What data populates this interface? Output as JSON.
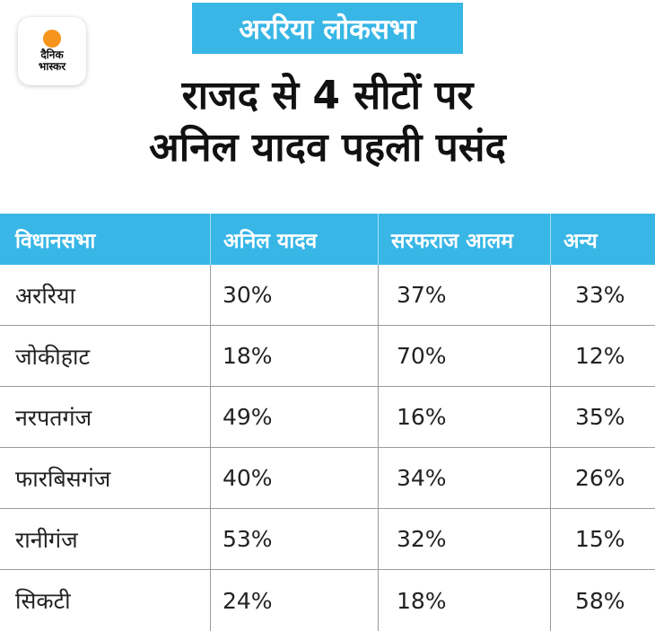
{
  "logo": {
    "line1": "दैनिक",
    "line2": "भास्कर"
  },
  "tag": "अररिया लोकसभा",
  "headline": {
    "line1": "राजद से 4 सीटों पर",
    "line2": "अनिल यादव पहली पसंद"
  },
  "colors": {
    "accent": "#38b6e6",
    "logo_sun": "#f7941d",
    "text": "#222222",
    "grid": "#9a9a9a"
  },
  "chart_data": {
    "type": "table",
    "columns": [
      "विधानसभा",
      "अनिल यादव",
      "सरफराज आलम",
      "अन्य"
    ],
    "rows": [
      [
        "अररिया",
        "30%",
        "37%",
        "33%"
      ],
      [
        "जोकीहाट",
        "18%",
        "70%",
        "12%"
      ],
      [
        "नरपतगंज",
        "49%",
        "16%",
        "35%"
      ],
      [
        "फारबिसगंज",
        "40%",
        "34%",
        "26%"
      ],
      [
        "रानीगंज",
        "53%",
        "32%",
        "15%"
      ],
      [
        "सिकटी",
        "24%",
        "18%",
        "58%"
      ]
    ]
  }
}
